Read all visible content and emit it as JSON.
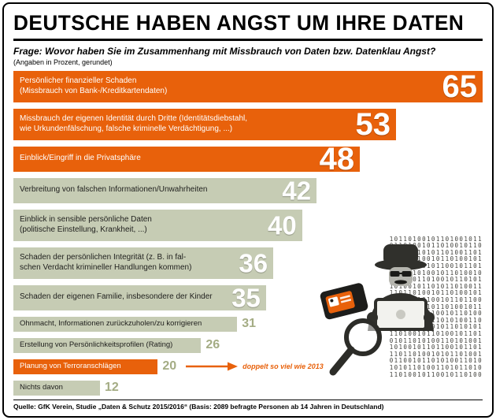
{
  "page": {
    "title": "DEUTSCHE HABEN ANGST UM IHRE DATEN",
    "question": "Frage: Wovor haben Sie im Zusammenhang mit Missbrauch von Daten bzw. Datenklau Angst?",
    "note": "(Angaben in Prozent, gerundet)",
    "source": "Quelle: GfK Verein, Studie „Daten & Schutz 2015/2016“ (Basis: 2089 befragte Personen ab 14 Jahren in Deutschland)"
  },
  "colors": {
    "accent_orange": "#e8610b",
    "bar_sage": "#c6ccb4",
    "outside_number": "#a4ac84",
    "ink": "#000000"
  },
  "chart_data": {
    "type": "bar",
    "orientation": "horizontal",
    "unit": "percent, gerundet",
    "xlim": [
      0,
      65
    ],
    "grid": false,
    "legend": "none",
    "title": "Deutsche haben Angst um ihre Daten",
    "categories": [
      "Persönlicher finanzieller Schaden (Missbrauch von Bank-/Kreditkartendaten)",
      "Missbrauch der eigenen Identität durch Dritte (Identitätsdiebstahl, wie Urkundenfälschung, falsche kriminelle Verdächtigung, ...)",
      "Einblick/Eingriff in die Privatsphäre",
      "Verbreitung von falschen Informationen/Unwahrheiten",
      "Einblick in sensible persönliche Daten (politische Einstellung, Krankheit, ...)",
      "Schaden der persönlichen Integrität (z. B. in falschen Verdacht krimineller Handlungen kommen)",
      "Schaden der eigenen Familie, insbesondere der Kinder",
      "Ohnmacht, Informationen zurückzuholen/zu korrigieren",
      "Erstellung von Persönlichkeitsprofilen (Rating)",
      "Planung von Terroranschlägen",
      "Nichts davon"
    ],
    "values": [
      65,
      53,
      48,
      42,
      40,
      36,
      35,
      31,
      26,
      20,
      12
    ],
    "annotation": "doppelt so viel wie 2013",
    "bars": [
      {
        "label": "Persönlicher finanzieller Schaden\n(Missbrauch von Bank-/Kreditkartendaten)",
        "value": 65,
        "color": "orange"
      },
      {
        "label": "Missbrauch der eigenen Identität durch Dritte (Identitätsdiebstahl,\nwie Urkundenfälschung, falsche kriminelle Verdächtigung, ...)",
        "value": 53,
        "color": "orange"
      },
      {
        "label": "Einblick/Eingriff in die Privatsphäre",
        "value": 48,
        "color": "orange"
      },
      {
        "label": "Verbreitung von falschen Informationen/Unwahrheiten",
        "value": 42,
        "color": "sage"
      },
      {
        "label": "Einblick in sensible persönliche Daten\n(politische Einstellung, Krankheit, ...)",
        "value": 40,
        "color": "sage"
      },
      {
        "label": "Schaden der persönlichen Integrität (z. B. in fal-\nschen Verdacht krimineller Handlungen kommen)",
        "value": 36,
        "color": "sage"
      },
      {
        "label": "Schaden der eigenen Familie, insbesondere der Kinder",
        "value": 35,
        "color": "sage"
      },
      {
        "label": "Ohnmacht, Informationen zurückzuholen/zu korrigieren",
        "value": 31,
        "color": "sage",
        "size": "short"
      },
      {
        "label": "Erstellung von Persönlichkeitsprofilen (Rating)",
        "value": 26,
        "color": "sage",
        "size": "short"
      },
      {
        "label": "Planung von Terroranschlägen",
        "value": 20,
        "color": "orange",
        "size": "short",
        "annotation": "doppelt so viel wie 2013"
      },
      {
        "label": "Nichts davon",
        "value": 12,
        "color": "sage",
        "size": "short"
      }
    ]
  },
  "illustration": {
    "name": "hacker-spy-with-laptop-wallet-magnifier-over-binary-code",
    "binary_code": "10110100101101001011\n01101001011010010110\n10100110101101001101\n01011010010110100101\n11010100101100101101\n10110101001011010010\n01101011010010110101\n10100101101011010011\n11011010010110100101\n01010110100101101100\n10110100101101001011\n11010011010010110100\n01101010011010100110\n10101101001011010101\n11010010110100101101\n01011010100110101001\n10100101101100101101\n11011010010101101001\n01100101101010011010\n10101101001101011010\n11010010110010110100"
  }
}
